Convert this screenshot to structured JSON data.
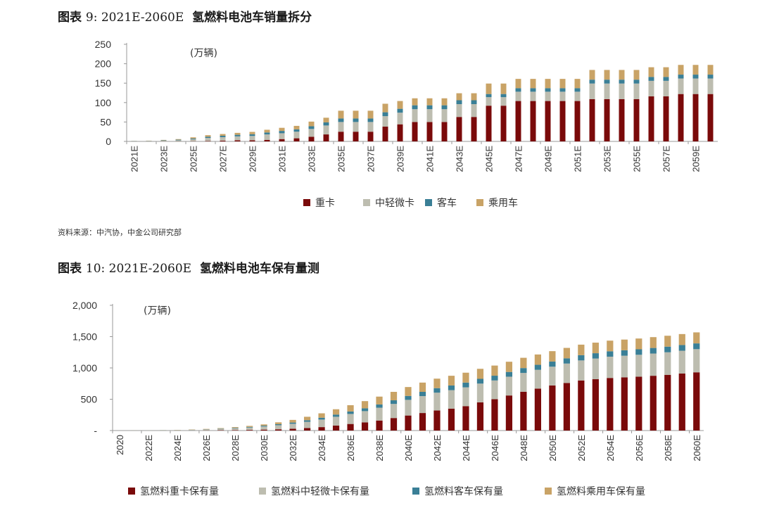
{
  "figure1": {
    "title_prefix": "图表 ",
    "title_num": "9: 2021E-2060E",
    "title_text": "氢燃料电池车销量拆分",
    "source": "资料来源：中汽协，中金公司研究部"
  },
  "figure2": {
    "title_prefix": "图表 ",
    "title_num": "10: 2021E-2060E",
    "title_text": "氢燃料电池车保有量测"
  },
  "colors": {
    "heavy": "#7a0a0a",
    "medium": "#bdbdb0",
    "bus": "#3a7f96",
    "car": "#c9a366"
  },
  "chart_data": [
    {
      "type": "bar",
      "stacked": true,
      "unit_label": "(万辆)",
      "ylim": [
        0,
        250
      ],
      "yticks": [
        "0",
        "50",
        "100",
        "150",
        "200",
        "250"
      ],
      "categories": [
        "2021E",
        "2022E",
        "2023E",
        "2024E",
        "2025E",
        "2026E",
        "2027E",
        "2028E",
        "2029E",
        "2030E",
        "2031E",
        "2032E",
        "2033E",
        "2034E",
        "2035E",
        "2036E",
        "2037E",
        "2038E",
        "2039E",
        "2040E",
        "2041E",
        "2042E",
        "2043E",
        "2044E",
        "2045E",
        "2046E",
        "2047E",
        "2048E",
        "2049E",
        "2050E",
        "2051E",
        "2052E",
        "2053E",
        "2054E",
        "2055E",
        "2056E",
        "2057E",
        "2058E",
        "2059E",
        "2060E"
      ],
      "xtick_labels": [
        "2021E",
        "2023E",
        "2025E",
        "2027E",
        "2029E",
        "2031E",
        "2033E",
        "2035E",
        "2037E",
        "2039E",
        "2041E",
        "2043E",
        "2045E",
        "2047E",
        "2049E",
        "2051E",
        "2053E",
        "2055E",
        "2057E",
        "2059E"
      ],
      "legend": [
        "重卡",
        "中轻微卡",
        "客车",
        "乘用车"
      ],
      "legend_position": "bottom",
      "series": [
        {
          "name": "重卡",
          "values": [
            0.1,
            0.2,
            0.3,
            0.4,
            0.5,
            1,
            2,
            3,
            3,
            4,
            6,
            8,
            12,
            18,
            25,
            25,
            25,
            38,
            44,
            50,
            50,
            50,
            63,
            63,
            92,
            92,
            104,
            104,
            104,
            104,
            104,
            109,
            109,
            109,
            109,
            116,
            116,
            122,
            122,
            122
          ]
        },
        {
          "name": "中轻微卡",
          "values": [
            0.5,
            0.8,
            1.5,
            2.5,
            5,
            8,
            9,
            10,
            11,
            14,
            15,
            17,
            20,
            23,
            25,
            25,
            25,
            27,
            30,
            33,
            33,
            33,
            33,
            33,
            22,
            22,
            24,
            24,
            24,
            24,
            24,
            40,
            40,
            40,
            40,
            40,
            40,
            40,
            40,
            40
          ]
        },
        {
          "name": "客车",
          "values": [
            0.4,
            0.5,
            1,
            1.5,
            2,
            3,
            3.5,
            4,
            4.5,
            5,
            6,
            6,
            7,
            8,
            9,
            9,
            9,
            10,
            10,
            10,
            10,
            10,
            10,
            10,
            8,
            8,
            9,
            9,
            9,
            9,
            9,
            10,
            10,
            10,
            10,
            10,
            10,
            10,
            10,
            10
          ]
        },
        {
          "name": "乘用车",
          "values": [
            0.3,
            0.5,
            1,
            1.5,
            3,
            4,
            4.5,
            5,
            6,
            7,
            8,
            9,
            12,
            12,
            20,
            20,
            20,
            22,
            20,
            18,
            18,
            18,
            18,
            18,
            27,
            27,
            24,
            24,
            24,
            24,
            24,
            25,
            25,
            25,
            25,
            25,
            25,
            25,
            25,
            25
          ]
        }
      ]
    },
    {
      "type": "bar",
      "stacked": true,
      "unit_label": "(万辆)",
      "ylim": [
        0,
        2000
      ],
      "yticks": [
        "-",
        "500",
        "1,000",
        "1,500",
        "2,000"
      ],
      "categories": [
        "2020",
        "2021E",
        "2022E",
        "2023E",
        "2024E",
        "2025E",
        "2026E",
        "2027E",
        "2028E",
        "2029E",
        "2030E",
        "2031E",
        "2032E",
        "2033E",
        "2034E",
        "2035E",
        "2036E",
        "2037E",
        "2038E",
        "2039E",
        "2040E",
        "2041E",
        "2042E",
        "2043E",
        "2044E",
        "2045E",
        "2046E",
        "2047E",
        "2048E",
        "2049E",
        "2050E",
        "2051E",
        "2052E",
        "2053E",
        "2054E",
        "2055E",
        "2056E",
        "2057E",
        "2058E",
        "2059E",
        "2060E"
      ],
      "xtick_labels": [
        "2020",
        "2022E",
        "2024E",
        "2026E",
        "2028E",
        "2030E",
        "2032E",
        "2034E",
        "2036E",
        "2038E",
        "2040E",
        "2042E",
        "2044E",
        "2046E",
        "2048E",
        "2050E",
        "2052E",
        "2054E",
        "2056E",
        "2058E",
        "2060E"
      ],
      "legend": [
        "氢燃料重卡保有量",
        "氢燃料中轻微卡保有量",
        "氢燃料客车保有量",
        "氢燃料乘用车保有量"
      ],
      "legend_position": "bottom",
      "series": [
        {
          "name": "氢燃料重卡保有量",
          "values": [
            0,
            0,
            0,
            0,
            1,
            2,
            3,
            5,
            7,
            10,
            15,
            20,
            28,
            40,
            55,
            80,
            105,
            130,
            160,
            200,
            240,
            280,
            320,
            350,
            390,
            450,
            500,
            560,
            620,
            670,
            720,
            760,
            800,
            820,
            840,
            850,
            860,
            875,
            890,
            910,
            930
          ]
        },
        {
          "name": "氢燃料中轻微卡保有量",
          "values": [
            0,
            1,
            2,
            3,
            5,
            8,
            13,
            20,
            28,
            38,
            50,
            65,
            80,
            100,
            120,
            140,
            160,
            180,
            205,
            225,
            250,
            270,
            285,
            295,
            300,
            300,
            300,
            300,
            300,
            300,
            300,
            310,
            320,
            330,
            340,
            345,
            350,
            355,
            360,
            365,
            370
          ]
        },
        {
          "name": "氢燃料客车保有量",
          "values": [
            0,
            1,
            1,
            2,
            2,
            3,
            4,
            6,
            8,
            10,
            13,
            16,
            20,
            25,
            30,
            35,
            40,
            45,
            52,
            58,
            63,
            68,
            72,
            75,
            76,
            76,
            76,
            76,
            78,
            80,
            82,
            83,
            84,
            85,
            86,
            87,
            88,
            89,
            90,
            91,
            92
          ]
        },
        {
          "name": "氢燃料乘用车保有量",
          "values": [
            0,
            1,
            1,
            2,
            3,
            4,
            6,
            8,
            12,
            16,
            20,
            30,
            42,
            55,
            70,
            85,
            100,
            115,
            125,
            135,
            142,
            148,
            152,
            155,
            158,
            160,
            162,
            163,
            164,
            165,
            166,
            167,
            168,
            169,
            170,
            171,
            172,
            173,
            174,
            175,
            176
          ]
        }
      ]
    }
  ]
}
